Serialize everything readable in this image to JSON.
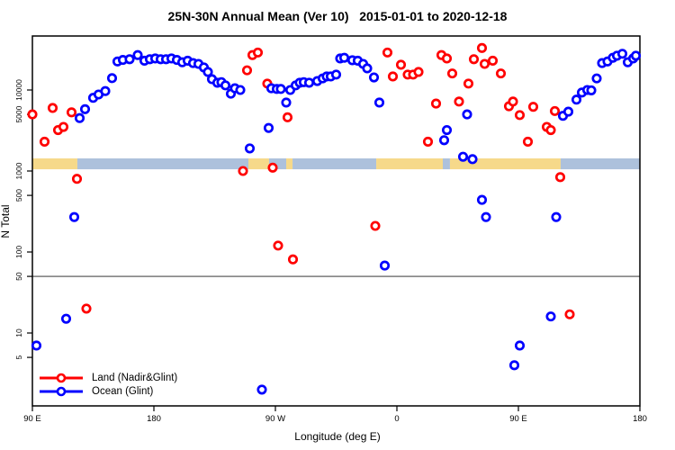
{
  "title": "25N-30N Annual Mean (Ver 10)   2015-01-01 to 2020-12-18",
  "legend": {
    "items": [
      {
        "label": "Land (Nadir&Glint)",
        "color": "#ff0000"
      },
      {
        "label": "Ocean (Glint)",
        "color": "#0000ff"
      }
    ]
  },
  "chart_data": {
    "type": "scatter",
    "title": "25N-30N Annual Mean (Ver 10)   2015-01-01 to 2020-12-18",
    "xlabel": "Longitude (deg E)",
    "ylabel": "N Total",
    "y_scale": "log",
    "ylim": [
      1.2,
      46000
    ],
    "x_axis_note": "x positions are degrees along axis from left edge; axis wraps 90E-180-90W-0-90E-180 over 450 deg",
    "x_span_deg": [
      0,
      450
    ],
    "x_ticks": [
      {
        "pos_deg": 0,
        "label": "90 E"
      },
      {
        "pos_deg": 90,
        "label": "180"
      },
      {
        "pos_deg": 180,
        "label": "90 W"
      },
      {
        "pos_deg": 270,
        "label": "0"
      },
      {
        "pos_deg": 360,
        "label": "90 E"
      },
      {
        "pos_deg": 450,
        "label": "180"
      }
    ],
    "y_ticks": [
      5,
      10,
      50,
      100,
      500,
      1000,
      5000,
      10000
    ],
    "reference_line_y": 50,
    "reference_line_color": "#7a7a7a",
    "surface_band": {
      "y_range": [
        1050,
        1430
      ],
      "colors": {
        "land": "#f6d98a",
        "ocean": "#adc1dc"
      },
      "segments": [
        {
          "from_deg": 0,
          "to_deg": 33.3,
          "surface": "land"
        },
        {
          "from_deg": 33.3,
          "to_deg": 160,
          "surface": "ocean"
        },
        {
          "from_deg": 160,
          "to_deg": 175.3,
          "surface": "land"
        },
        {
          "from_deg": 175.3,
          "to_deg": 188,
          "surface": "ocean"
        },
        {
          "from_deg": 188,
          "to_deg": 192.7,
          "surface": "land"
        },
        {
          "from_deg": 192.7,
          "to_deg": 254.7,
          "surface": "ocean"
        },
        {
          "from_deg": 254.7,
          "to_deg": 304,
          "surface": "land"
        },
        {
          "from_deg": 304,
          "to_deg": 309.3,
          "surface": "ocean"
        },
        {
          "from_deg": 309.3,
          "to_deg": 391.3,
          "surface": "land"
        },
        {
          "from_deg": 391.3,
          "to_deg": 450,
          "surface": "ocean"
        }
      ]
    },
    "series": [
      {
        "name": "Land (Nadir&Glint)",
        "color": "#ff0000",
        "points": [
          [
            0,
            5000
          ],
          [
            9,
            2300
          ],
          [
            15,
            6000
          ],
          [
            19,
            3200
          ],
          [
            23,
            3500
          ],
          [
            29,
            5300
          ],
          [
            33,
            800
          ],
          [
            40,
            20
          ],
          [
            156,
            1000
          ],
          [
            159,
            17500
          ],
          [
            163,
            27000
          ],
          [
            167,
            29000
          ],
          [
            174,
            12000
          ],
          [
            178,
            1100
          ],
          [
            182,
            120
          ],
          [
            189,
            4600
          ],
          [
            193,
            81
          ],
          [
            254,
            210
          ],
          [
            263,
            29000
          ],
          [
            267,
            14700
          ],
          [
            273,
            20500
          ],
          [
            278,
            15500
          ],
          [
            282,
            15500
          ],
          [
            286,
            16700
          ],
          [
            293,
            2300
          ],
          [
            299,
            6800
          ],
          [
            303,
            27000
          ],
          [
            307,
            24500
          ],
          [
            311,
            16000
          ],
          [
            316,
            7200
          ],
          [
            323,
            12000
          ],
          [
            327,
            24000
          ],
          [
            333,
            33000
          ],
          [
            335,
            21000
          ],
          [
            341,
            23000
          ],
          [
            347,
            16000
          ],
          [
            353,
            6300
          ],
          [
            356,
            7200
          ],
          [
            361,
            4900
          ],
          [
            367,
            2300
          ],
          [
            371,
            6200
          ],
          [
            381,
            3500
          ],
          [
            384,
            3200
          ],
          [
            387,
            5500
          ],
          [
            391,
            840
          ],
          [
            398,
            17
          ]
        ]
      },
      {
        "name": "Ocean (Glint)",
        "color": "#0000ff",
        "points": [
          [
            3,
            7
          ],
          [
            25,
            15
          ],
          [
            31,
            270
          ],
          [
            35,
            4500
          ],
          [
            39,
            5800
          ],
          [
            45,
            8000
          ],
          [
            49,
            8800
          ],
          [
            54,
            9700
          ],
          [
            59,
            14000
          ],
          [
            63,
            22500
          ],
          [
            67,
            23500
          ],
          [
            72,
            24000
          ],
          [
            78,
            27000
          ],
          [
            83,
            23000
          ],
          [
            87,
            24000
          ],
          [
            91,
            24500
          ],
          [
            95,
            24000
          ],
          [
            99,
            24000
          ],
          [
            103,
            24500
          ],
          [
            107,
            23500
          ],
          [
            111,
            22000
          ],
          [
            115,
            23000
          ],
          [
            119,
            21500
          ],
          [
            123,
            21000
          ],
          [
            127,
            19000
          ],
          [
            130,
            16700
          ],
          [
            133,
            13600
          ],
          [
            137,
            12300
          ],
          [
            140,
            12500
          ],
          [
            143,
            11400
          ],
          [
            147,
            9000
          ],
          [
            150,
            10500
          ],
          [
            154,
            10000
          ],
          [
            161,
            1900
          ],
          [
            170,
            2
          ],
          [
            175,
            3400
          ],
          [
            177,
            10500
          ],
          [
            181,
            10300
          ],
          [
            184,
            10300
          ],
          [
            188,
            7000
          ],
          [
            191,
            10000
          ],
          [
            195,
            11400
          ],
          [
            198,
            12300
          ],
          [
            201,
            12500
          ],
          [
            205,
            12300
          ],
          [
            211,
            12900
          ],
          [
            215,
            13900
          ],
          [
            218,
            14700
          ],
          [
            221,
            14700
          ],
          [
            225,
            15500
          ],
          [
            228,
            24500
          ],
          [
            231,
            25000
          ],
          [
            237,
            23300
          ],
          [
            241,
            23000
          ],
          [
            245,
            21000
          ],
          [
            248,
            18500
          ],
          [
            253,
            14300
          ],
          [
            257,
            7000
          ],
          [
            261,
            68
          ],
          [
            305,
            2400
          ],
          [
            307,
            3200
          ],
          [
            319,
            1500
          ],
          [
            322,
            5000
          ],
          [
            326,
            1400
          ],
          [
            333,
            440
          ],
          [
            336,
            270
          ],
          [
            357,
            4
          ],
          [
            361,
            7
          ],
          [
            384,
            16
          ],
          [
            388,
            270
          ],
          [
            393,
            4800
          ],
          [
            397,
            5400
          ],
          [
            403,
            7600
          ],
          [
            407,
            9300
          ],
          [
            411,
            10000
          ],
          [
            414,
            9900
          ],
          [
            418,
            13900
          ],
          [
            422,
            21500
          ],
          [
            426,
            22500
          ],
          [
            430,
            25000
          ],
          [
            433,
            26500
          ],
          [
            437,
            28000
          ],
          [
            441,
            22000
          ],
          [
            445,
            24500
          ],
          [
            447,
            26500
          ]
        ]
      }
    ],
    "legend_position": "bottom-left-inside",
    "grid": false
  }
}
